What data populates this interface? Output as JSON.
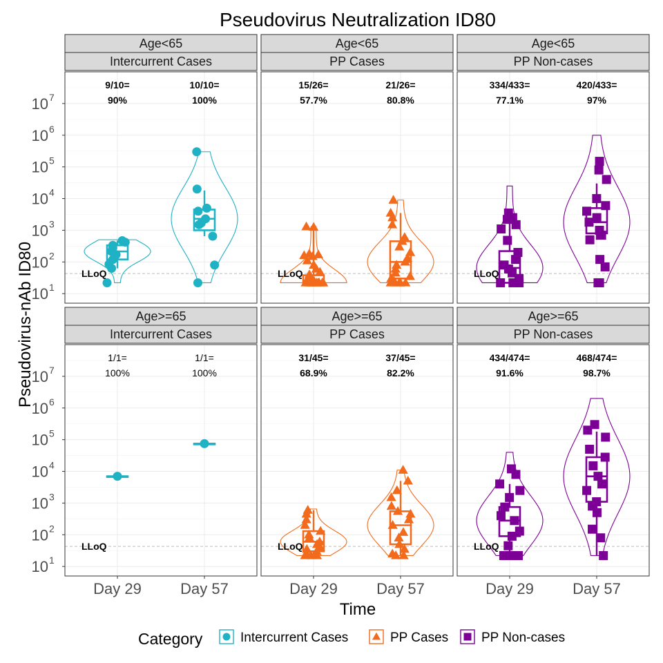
{
  "chart_data": {
    "type": "violin",
    "title": "Pseudovirus Neutralization ID80",
    "xlabel": "Time",
    "ylabel": "Pseudovirus-nAb ID80",
    "y_scale": "log10",
    "ylim": [
      5,
      100000000
    ],
    "y_ticks": [
      {
        "value": 10,
        "exp": "1"
      },
      {
        "value": 100,
        "exp": "2"
      },
      {
        "value": 1000,
        "exp": "3"
      },
      {
        "value": 10000,
        "exp": "4"
      },
      {
        "value": 100000,
        "exp": "5"
      },
      {
        "value": 1000000,
        "exp": "6"
      },
      {
        "value": 10000000,
        "exp": "7"
      }
    ],
    "y_tick_base": "10",
    "categories": [
      "Day 29",
      "Day 57"
    ],
    "lloq": {
      "value": 43,
      "label": "LLoQ"
    },
    "legend": {
      "title": "Category",
      "position": "bottom",
      "items": [
        {
          "label": "Intercurrent Cases",
          "color": "#1EB2C4",
          "shape": "circle"
        },
        {
          "label": "PP Cases",
          "color": "#F26A1B",
          "shape": "triangle"
        },
        {
          "label": "PP Non-cases",
          "color": "#7D0096",
          "shape": "square"
        }
      ]
    },
    "panels": [
      {
        "age": "Age<65",
        "group": "Intercurrent Cases",
        "color": "#1EB2C4",
        "shape": "circle",
        "rates": [
          {
            "line1": "9/10=",
            "line2": "90%"
          },
          {
            "line1": "10/10=",
            "line2": "100%"
          }
        ],
        "series": [
          {
            "day": "Day 29",
            "box": [
              63,
              120,
              215,
              335,
              470
            ],
            "violin": [
              22,
              500
            ],
            "points": [
              22,
              63,
              85,
              120,
              170,
              215,
              280,
              335,
              420,
              470
            ]
          },
          {
            "day": "Day 57",
            "box": [
              650,
              1000,
              2300,
              4500,
              18000
            ],
            "violin": [
              22,
              300000
            ],
            "points": [
              22,
              80,
              650,
              1500,
              1700,
              2300,
              4000,
              5000,
              20000,
              300000
            ]
          }
        ]
      },
      {
        "age": "Age<65",
        "group": "PP Cases",
        "color": "#F26A1B",
        "shape": "triangle",
        "rates": [
          {
            "line1": "15/26=",
            "line2": "57.7%"
          },
          {
            "line1": "21/26=",
            "line2": "80.8%"
          }
        ],
        "series": [
          {
            "day": "Day 29",
            "box": [
              22,
              22,
              22,
              38,
              1250
            ],
            "violin": [
              22,
              1300
            ],
            "points": [
              22,
              22,
              22,
              22,
              22,
              22,
              22,
              22,
              22,
              22,
              22,
              25,
              28,
              30,
              35,
              40,
              48,
              60,
              80,
              110,
              150,
              160,
              170,
              180,
              1250,
              1300
            ]
          },
          {
            "day": "Day 57",
            "box": [
              22,
              30,
              100,
              450,
              3500
            ],
            "violin": [
              22,
              9000
            ],
            "points": [
              22,
              22,
              22,
              22,
              22,
              25,
              30,
              35,
              45,
              60,
              80,
              100,
              130,
              200,
              300,
              450,
              600,
              1500,
              2500,
              3500,
              9000
            ]
          }
        ]
      },
      {
        "age": "Age<65",
        "group": "PP Non-cases",
        "color": "#7D0096",
        "shape": "square",
        "rates": [
          {
            "line1": "334/433=",
            "line2": "77.1%"
          },
          {
            "line1": "420/433=",
            "line2": "97%"
          }
        ],
        "series": [
          {
            "day": "Day 29",
            "box": [
              22,
              22,
              65,
              220,
              2500
            ],
            "violin": [
              22,
              25000
            ],
            "points": [
              22,
              22,
              22,
              30,
              45,
              60,
              80,
              120,
              200,
              480,
              1100,
              1500,
              2200,
              2500,
              3500
            ]
          },
          {
            "day": "Day 57",
            "box": [
              500,
              800,
              1800,
              5000,
              30000
            ],
            "violin": [
              22,
              1000000
            ],
            "points": [
              22,
              22,
              70,
              120,
              500,
              700,
              1000,
              1800,
              2500,
              4000,
              6000,
              10000,
              40000,
              80000,
              150000
            ]
          }
        ]
      },
      {
        "age": "Age>=65",
        "group": "Intercurrent Cases",
        "color": "#1EB2C4",
        "shape": "circle",
        "rates": [
          {
            "line1": "1/1=",
            "line2": "100%"
          },
          {
            "line1": "1/1=",
            "line2": "100%"
          }
        ],
        "series": [
          {
            "day": "Day 29",
            "box": [
              7000,
              7000,
              7000,
              7000,
              7000
            ],
            "violin": null,
            "points": [
              7000
            ]
          },
          {
            "day": "Day 57",
            "box": [
              75000,
              75000,
              75000,
              75000,
              75000
            ],
            "violin": null,
            "points": [
              75000
            ]
          }
        ]
      },
      {
        "age": "Age>=65",
        "group": "PP Cases",
        "color": "#F26A1B",
        "shape": "triangle",
        "rates": [
          {
            "line1": "31/45=",
            "line2": "68.9%"
          },
          {
            "line1": "37/45=",
            "line2": "82.2%"
          }
        ],
        "series": [
          {
            "day": "Day 29",
            "box": [
              22,
              30,
              60,
              130,
              600
            ],
            "violin": [
              22,
              650
            ],
            "points": [
              22,
              22,
              22,
              25,
              30,
              35,
              40,
              50,
              60,
              80,
              100,
              130,
              200,
              300,
              450,
              600
            ]
          },
          {
            "day": "Day 57",
            "box": [
              22,
              50,
              200,
              550,
              5000
            ],
            "violin": [
              22,
              11000
            ],
            "points": [
              22,
              22,
              25,
              35,
              50,
              80,
              120,
              200,
              300,
              450,
              550,
              800,
              1500,
              2500,
              5000,
              11000
            ]
          }
        ]
      },
      {
        "age": "Age>=65",
        "group": "PP Non-cases",
        "color": "#7D0096",
        "shape": "square",
        "rates": [
          {
            "line1": "434/474=",
            "line2": "91.6%"
          },
          {
            "line1": "468/474=",
            "line2": "98.7%"
          }
        ],
        "series": [
          {
            "day": "Day 29",
            "box": [
              22,
              90,
              280,
              750,
              4000
            ],
            "violin": [
              22,
              40000
            ],
            "points": [
              22,
              22,
              22,
              22,
              45,
              90,
              130,
              280,
              400,
              750,
              1500,
              2500,
              4000,
              8000,
              12000
            ]
          },
          {
            "day": "Day 57",
            "box": [
              22,
              1100,
              7000,
              28000,
              180000
            ],
            "violin": [
              22,
              2000000
            ],
            "points": [
              22,
              80,
              150,
              500,
              800,
              1100,
              2500,
              4000,
              7000,
              15000,
              28000,
              50000,
              120000,
              200000,
              300000
            ]
          }
        ]
      }
    ]
  }
}
